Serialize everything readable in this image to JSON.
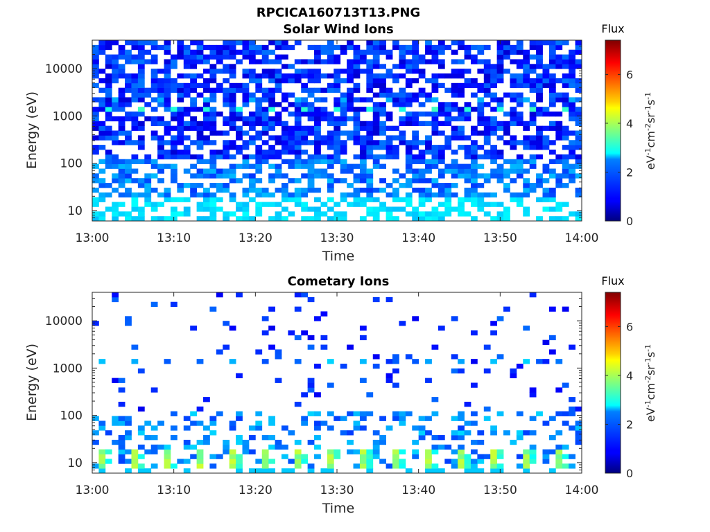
{
  "figure": {
    "title": "RPCICA160713T13.PNG"
  },
  "colorbar": {
    "title": "Flux",
    "label_parts": [
      "eV",
      "-1",
      "cm",
      "-2",
      "sr",
      "-1",
      "s",
      "-1"
    ],
    "range": [
      0,
      7.4
    ],
    "ticks": [
      0,
      2,
      4,
      6
    ],
    "tick_labels": [
      "0",
      "2",
      "4",
      "6"
    ],
    "colormap": "jet"
  },
  "chart_data": [
    {
      "type": "heatmap",
      "title": "Solar Wind Ions",
      "xlabel": "Time",
      "ylabel": "Energy (eV)",
      "x_range": [
        "13:00",
        "14:00"
      ],
      "x_ticks": [
        "13:00",
        "13:10",
        "13:20",
        "13:30",
        "13:40",
        "13:50",
        "14:00"
      ],
      "y_scale": "log",
      "y_range": [
        6,
        40000
      ],
      "y_ticks": [
        10,
        100,
        1000,
        10000
      ],
      "y_tick_labels": [
        "10",
        "100",
        "1000",
        "10000"
      ],
      "time_bins": 75,
      "energy_bins": 38,
      "value_range": [
        0,
        7.4
      ],
      "notes_visible": "Dense low-flux (blue, 0.5-2) coverage at high energies; cyan (~2.5) blocks below 20 eV; periodic cyan-green (~3) pixels near 1300 eV every ~4 min."
    },
    {
      "type": "heatmap",
      "title": "Cometary Ions",
      "xlabel": "Time",
      "ylabel": "Energy (eV)",
      "x_range": [
        "13:00",
        "14:00"
      ],
      "x_ticks": [
        "13:00",
        "13:10",
        "13:20",
        "13:30",
        "13:40",
        "13:50",
        "14:00"
      ],
      "y_scale": "log",
      "y_range": [
        6,
        40000
      ],
      "y_ticks": [
        10,
        100,
        1000,
        10000
      ],
      "y_tick_labels": [
        "10",
        "100",
        "1000",
        "10000"
      ],
      "time_bins": 75,
      "energy_bins": 38,
      "value_range": [
        0,
        7.4
      ],
      "notes_visible": "Sparse blue pixels above 100 eV; cyan band 20-100 eV; periodic green-yellow (3.5-4.3) blocks at 8-18 eV every ~4 min; blue blocks near 1300 eV."
    }
  ]
}
